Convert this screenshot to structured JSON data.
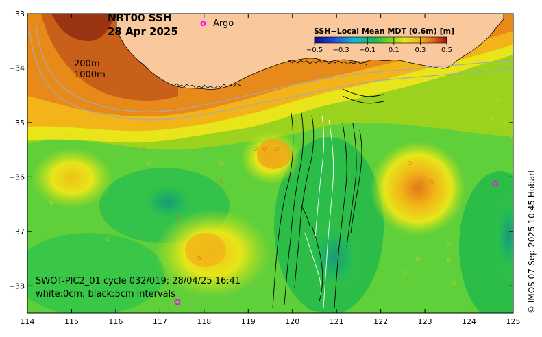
{
  "title": {
    "product": "NRT00 SSH",
    "date": "28 Apr 2025"
  },
  "legend": {
    "argo_marker": "o",
    "argo_label": "Argo"
  },
  "isobaths": {
    "shallow": "200m",
    "deep": "1000m"
  },
  "colorbar": {
    "title": "SSH−Local Mean MDT (0.6m) [m]",
    "ticks": [
      "−0.5",
      "−0.3",
      "−0.1",
      "0.1",
      "0.3",
      "0.5"
    ],
    "tick_values": [
      -0.5,
      -0.3,
      -0.1,
      0.1,
      0.3,
      0.5
    ],
    "range": [
      -0.5,
      0.5
    ]
  },
  "swot": {
    "line1": "SWOT-PIC2_01 cycle 032/019; 28/04/25 16:41",
    "line2": "white:0cm; black:5cm intervals"
  },
  "axes": {
    "lon_ticks": [
      "114",
      "115",
      "116",
      "117",
      "118",
      "119",
      "120",
      "121",
      "122",
      "123",
      "124",
      "125"
    ],
    "lat_ticks": [
      "−33",
      "−34",
      "−35",
      "−36",
      "−37",
      "−38"
    ],
    "lon_range": [
      114,
      125
    ],
    "lat_range": [
      -38.5,
      -33
    ]
  },
  "credit": "© IMOS 07-Sep-2025 10:45 Hobart",
  "colors": {
    "land": "#f9c89c",
    "argo": "#ff00ff",
    "isobath": "#a9a9a9"
  }
}
